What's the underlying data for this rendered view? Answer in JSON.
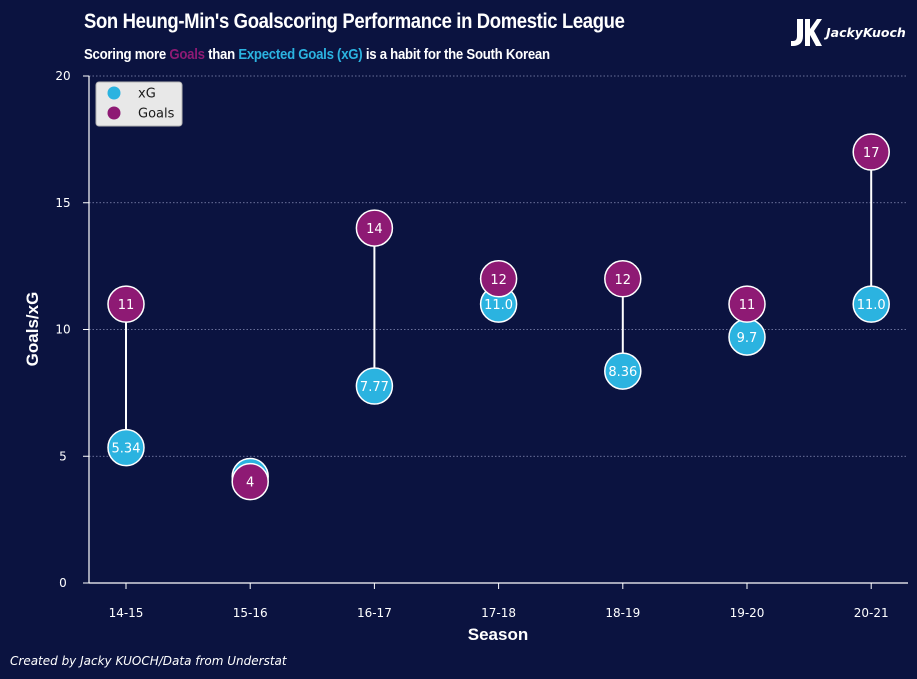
{
  "header": {
    "title": "Son Heung-Min's Goalscoring Performance in Domestic League",
    "subtitle_prefix": "Scoring more ",
    "subtitle_goals": "Goals",
    "subtitle_mid": " than ",
    "subtitle_xg": "Expected Goals (xG)",
    "subtitle_suffix": " is a habit for the South Korean"
  },
  "logo": {
    "monogram": "JK",
    "text": "JackyKuoch"
  },
  "footer": {
    "credit": "Created by Jacky KUOCH/Data from Understat"
  },
  "colors": {
    "background": "#0b1340",
    "xg": "#2bb3e0",
    "goals": "#8e1a74",
    "line": "#ffffff"
  },
  "chart_data": {
    "type": "scatter",
    "title": "Son Heung-Min's Goalscoring Performance in Domestic League",
    "xlabel": "Season",
    "ylabel": "Goals/xG",
    "categories": [
      "14-15",
      "15-16",
      "16-17",
      "17-18",
      "18-19",
      "19-20",
      "20-21"
    ],
    "ylim": [
      0,
      20
    ],
    "yticks": [
      0,
      5,
      10,
      15,
      20
    ],
    "grid": "horizontal dotted",
    "legend_position": "top-left",
    "series": [
      {
        "name": "xG",
        "color": "#2bb3e0",
        "values": [
          5.34,
          4.2,
          7.77,
          11.0,
          8.36,
          9.7,
          11.0
        ],
        "labels": [
          "5.34",
          "",
          "7.77",
          "11.0",
          "8.36",
          "9.7",
          "11.0"
        ]
      },
      {
        "name": "Goals",
        "color": "#8e1a74",
        "values": [
          11,
          4,
          14,
          12,
          12,
          11,
          17
        ],
        "labels": [
          "11",
          "4",
          "14",
          "12",
          "12",
          "11",
          "17"
        ]
      }
    ]
  }
}
